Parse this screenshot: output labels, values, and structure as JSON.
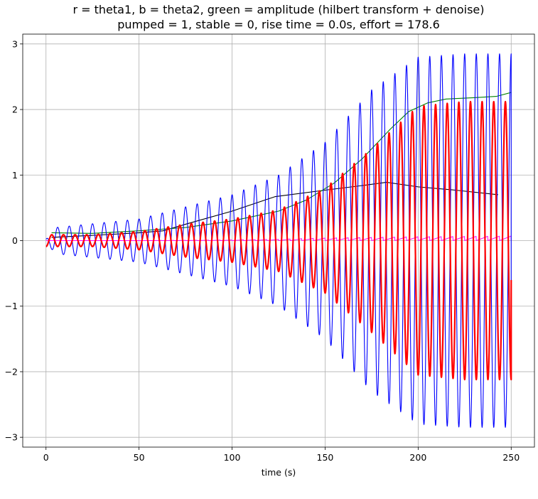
{
  "chart_data": {
    "type": "line",
    "title": "r = theta1, b = theta2, green = amplitude (hilbert transform + denoise)",
    "subtitle": "pumped = 1, stable = 0, rise time = 0.0s, effort = 178.6",
    "xlabel": "time (s)",
    "ylabel": "",
    "xlim": [
      -12.5,
      262.5
    ],
    "ylim": [
      -3.15,
      3.15
    ],
    "xticks": [
      0,
      50,
      100,
      150,
      200,
      250
    ],
    "xtick_labels": [
      "0",
      "50",
      "100",
      "150",
      "200",
      "250"
    ],
    "yticks": [
      -3,
      -2,
      -1,
      0,
      1,
      2,
      3
    ],
    "ytick_labels": [
      "−3",
      "−2",
      "−1",
      "0",
      "1",
      "2",
      "3"
    ],
    "grid": true,
    "series": [
      {
        "color": "#0000ff",
        "kind": "oscillation",
        "period": 6.25,
        "phase": 0.0,
        "x_start": 0,
        "x_end": 250,
        "envelope_x": [
          0,
          5,
          50,
          100,
          125,
          150,
          175,
          200,
          225,
          250
        ],
        "envelope_y": [
          0.02,
          0.2,
          0.33,
          0.7,
          1.0,
          1.5,
          2.3,
          2.8,
          2.85,
          2.85
        ],
        "end_value": -0.62
      },
      {
        "color": "#ff0000",
        "kind": "oscillation",
        "period": 6.25,
        "phase": 0.5,
        "x_start": 0,
        "x_end": 250,
        "envelope_x": [
          0,
          25,
          50,
          75,
          100,
          125,
          150,
          175,
          200,
          225,
          250
        ],
        "envelope_y": [
          0.09,
          0.09,
          0.14,
          0.25,
          0.33,
          0.47,
          0.8,
          1.4,
          2.05,
          2.12,
          2.12
        ],
        "end_value": -0.6
      },
      {
        "color": "#008000",
        "kind": "line",
        "x": [
          3,
          25,
          50,
          75,
          100,
          125,
          140,
          155,
          170,
          185,
          195,
          205,
          215,
          230,
          242,
          250
        ],
        "y": [
          0.12,
          0.11,
          0.15,
          0.2,
          0.3,
          0.45,
          0.62,
          0.88,
          1.25,
          1.7,
          1.97,
          2.1,
          2.16,
          2.18,
          2.2,
          2.26
        ]
      },
      {
        "color": "#000000",
        "kind": "line",
        "x": [
          3,
          25,
          50,
          63,
          75,
          100,
          123,
          150,
          170,
          183,
          200,
          220,
          243
        ],
        "y": [
          0.05,
          0.08,
          0.12,
          0.15,
          0.25,
          0.45,
          0.67,
          0.77,
          0.84,
          0.89,
          0.82,
          0.77,
          0.7
        ]
      },
      {
        "color": "#ff00ff",
        "kind": "sawtooth",
        "period": 6.25,
        "x_start": 0,
        "x_end": 250,
        "envelope_x": [
          0,
          50,
          100,
          125,
          150,
          200,
          250
        ],
        "envelope_y": [
          0.0,
          0.0,
          0.01,
          0.02,
          0.04,
          0.06,
          0.07
        ]
      }
    ]
  }
}
